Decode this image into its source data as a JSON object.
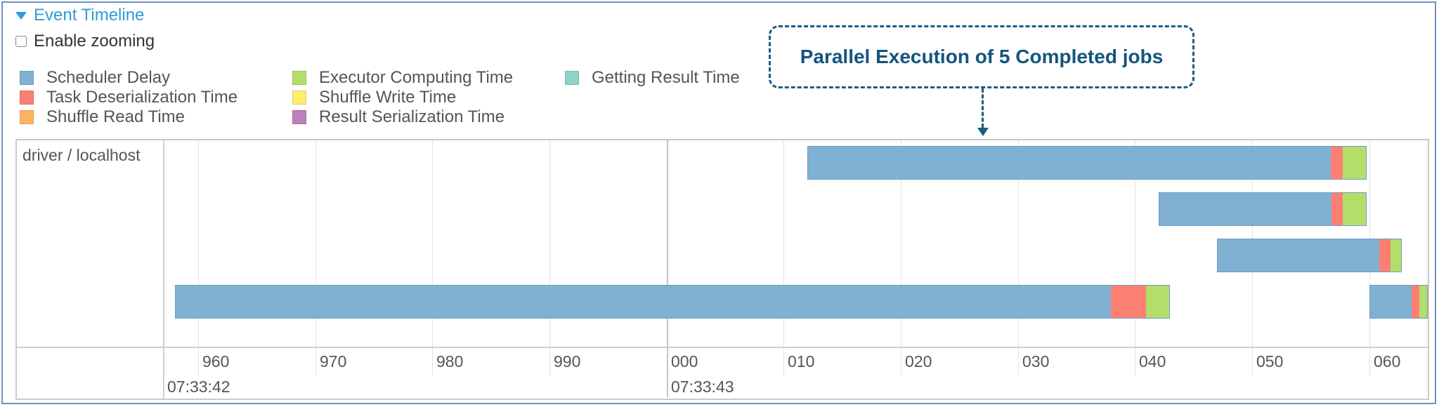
{
  "section": {
    "title": "Event Timeline"
  },
  "zoom": {
    "label": "Enable zooming"
  },
  "legend": [
    {
      "label": "Scheduler Delay",
      "color": "#80b1d3"
    },
    {
      "label": "Task Deserialization Time",
      "color": "#fb8072"
    },
    {
      "label": "Shuffle Read Time",
      "color": "#fdb462"
    },
    {
      "label": "Executor Computing Time",
      "color": "#b3de69"
    },
    {
      "label": "Shuffle Write Time",
      "color": "#ffed6f"
    },
    {
      "label": "Result Serialization Time",
      "color": "#bc80bd"
    },
    {
      "label": "Getting Result Time",
      "color": "#8dd3c7"
    }
  ],
  "callout": {
    "text": "Parallel Execution of 5 Completed jobs"
  },
  "timeline": {
    "group": "driver / localhost",
    "ticks": [
      "960",
      "970",
      "980",
      "990",
      "000",
      "010",
      "020",
      "030",
      "040",
      "050",
      "060"
    ],
    "major_ticks": [
      "07:33:42",
      "07:33:43"
    ],
    "time_range_ms": [
      957,
      1065
    ],
    "tasks": [
      {
        "start": 1012,
        "segments": [
          {
            "phase": "scheduler_delay",
            "ms": 44.8
          },
          {
            "phase": "task_deserialization",
            "ms": 1.0
          },
          {
            "phase": "executor_computing",
            "ms": 2.0
          }
        ]
      },
      {
        "start": 1042,
        "segments": [
          {
            "phase": "scheduler_delay",
            "ms": 14.8
          },
          {
            "phase": "task_deserialization",
            "ms": 1.0
          },
          {
            "phase": "executor_computing",
            "ms": 2.0
          }
        ]
      },
      {
        "start": 1047,
        "segments": [
          {
            "phase": "scheduler_delay",
            "ms": 13.9
          },
          {
            "phase": "task_deserialization",
            "ms": 1.0
          },
          {
            "phase": "executor_computing",
            "ms": 0.9
          }
        ]
      },
      {
        "start": 958,
        "segments": [
          {
            "phase": "scheduler_delay",
            "ms": 80.0
          },
          {
            "phase": "task_deserialization",
            "ms": 3.0
          },
          {
            "phase": "executor_computing",
            "ms": 2.0
          }
        ]
      },
      {
        "start": 1060,
        "segments": [
          {
            "phase": "scheduler_delay",
            "ms": 5.0
          },
          {
            "phase": "task_deserialization",
            "ms": 1.0
          },
          {
            "phase": "executor_computing",
            "ms": 0.9
          }
        ]
      }
    ],
    "phase_colors": {
      "scheduler_delay": "#80b1d3",
      "task_deserialization": "#fb8072",
      "executor_computing": "#b3de69"
    }
  }
}
